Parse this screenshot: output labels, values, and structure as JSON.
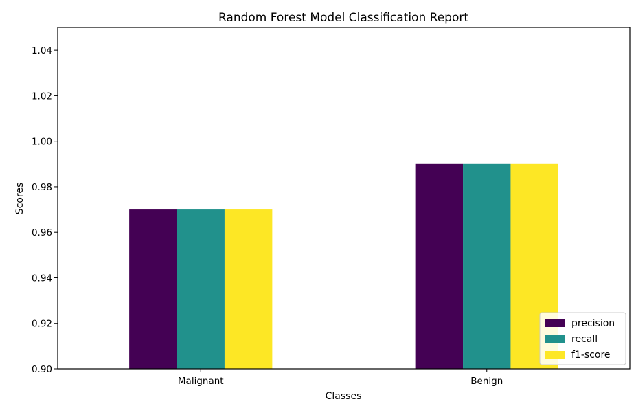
{
  "chart_data": {
    "type": "bar",
    "title": "Random Forest Model Classification Report",
    "xlabel": "Classes",
    "ylabel": "Scores",
    "ylim": [
      0.9,
      1.05
    ],
    "yticks": [
      "0.90",
      "0.92",
      "0.94",
      "0.96",
      "0.98",
      "1.00",
      "1.02",
      "1.04"
    ],
    "categories": [
      "Malignant",
      "Benign"
    ],
    "series": [
      {
        "name": "precision",
        "color": "#440154",
        "values": [
          0.97,
          0.99
        ]
      },
      {
        "name": "recall",
        "color": "#21918c",
        "values": [
          0.97,
          0.99
        ]
      },
      {
        "name": "f1-score",
        "color": "#fde725",
        "values": [
          0.97,
          0.99
        ]
      }
    ],
    "legend": "bottom-right",
    "grid": false
  }
}
